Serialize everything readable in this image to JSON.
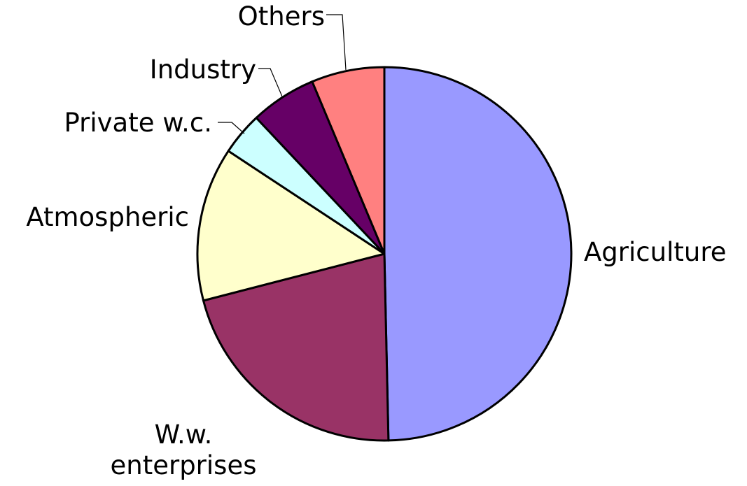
{
  "chart_data": {
    "type": "pie",
    "categories": [
      "Agriculture",
      "W.w. enterprises",
      "Atmospheric",
      "Private w.c.",
      "Industry",
      "Others"
    ],
    "values": [
      49.6,
      21.3,
      13.3,
      3.7,
      5.7,
      6.3
    ],
    "colors": [
      "#9999ff",
      "#993366",
      "#ffffcc",
      "#ccffff",
      "#660066",
      "#ff8080"
    ]
  }
}
